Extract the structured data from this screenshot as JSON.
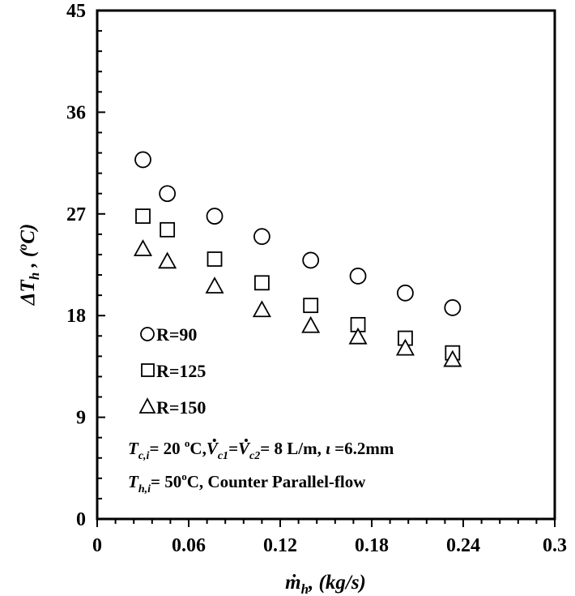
{
  "chart_data": {
    "type": "scatter",
    "xlabel": "ṁ",
    "xlabel_sub": "h",
    "xlabel_unit": ", (kg/s)",
    "ylabel": "ΔT",
    "ylabel_sub": "h",
    "ylabel_unit": " , (",
    "ylabel_unit_sup": "o",
    "ylabel_unit_end": "C)",
    "xlim": [
      0,
      0.3
    ],
    "ylim": [
      0,
      45
    ],
    "x_ticks": [
      0,
      0.06,
      0.12,
      0.18,
      0.24,
      0.3
    ],
    "x_tick_labels": [
      "0",
      "0.06",
      "0.12",
      "0.18",
      "0.24",
      "0.3"
    ],
    "y_ticks": [
      0,
      9,
      18,
      27,
      36,
      45
    ],
    "y_tick_labels": [
      "0",
      "9",
      "18",
      "27",
      "36",
      "45"
    ],
    "grid": false,
    "legend_position": "lower-left",
    "x": [
      0.03,
      0.046,
      0.077,
      0.108,
      0.14,
      0.171,
      0.202,
      0.233
    ],
    "series": [
      {
        "name": "R=90",
        "marker": "circle",
        "values": [
          31.8,
          28.8,
          26.8,
          25.0,
          22.9,
          21.5,
          20.0,
          18.7
        ]
      },
      {
        "name": "R=125",
        "marker": "square",
        "values": [
          26.8,
          25.6,
          23.0,
          20.9,
          18.9,
          17.2,
          16.0,
          14.7
        ]
      },
      {
        "name": "R=150",
        "marker": "triangle",
        "values": [
          23.9,
          22.8,
          20.6,
          18.5,
          17.1,
          16.1,
          15.1,
          14.1
        ]
      }
    ],
    "annotations": {
      "line1": {
        "T": "T",
        "T_sub": "c,i",
        "p1": "= 20 ",
        "sup1": "o",
        "p2": "C,",
        "V": "V",
        "V1_sub": "c1",
        "eq": "=",
        "V2_sub": "c2",
        "p3": "= 8 L/m, ",
        "iota": "ι",
        "p4": " =6.2mm"
      },
      "line2": {
        "T": "T",
        "T_sub": "h,i",
        "p1": "= 50",
        "sup1": "o",
        "p2": "C, Counter Parallel-flow"
      }
    }
  }
}
